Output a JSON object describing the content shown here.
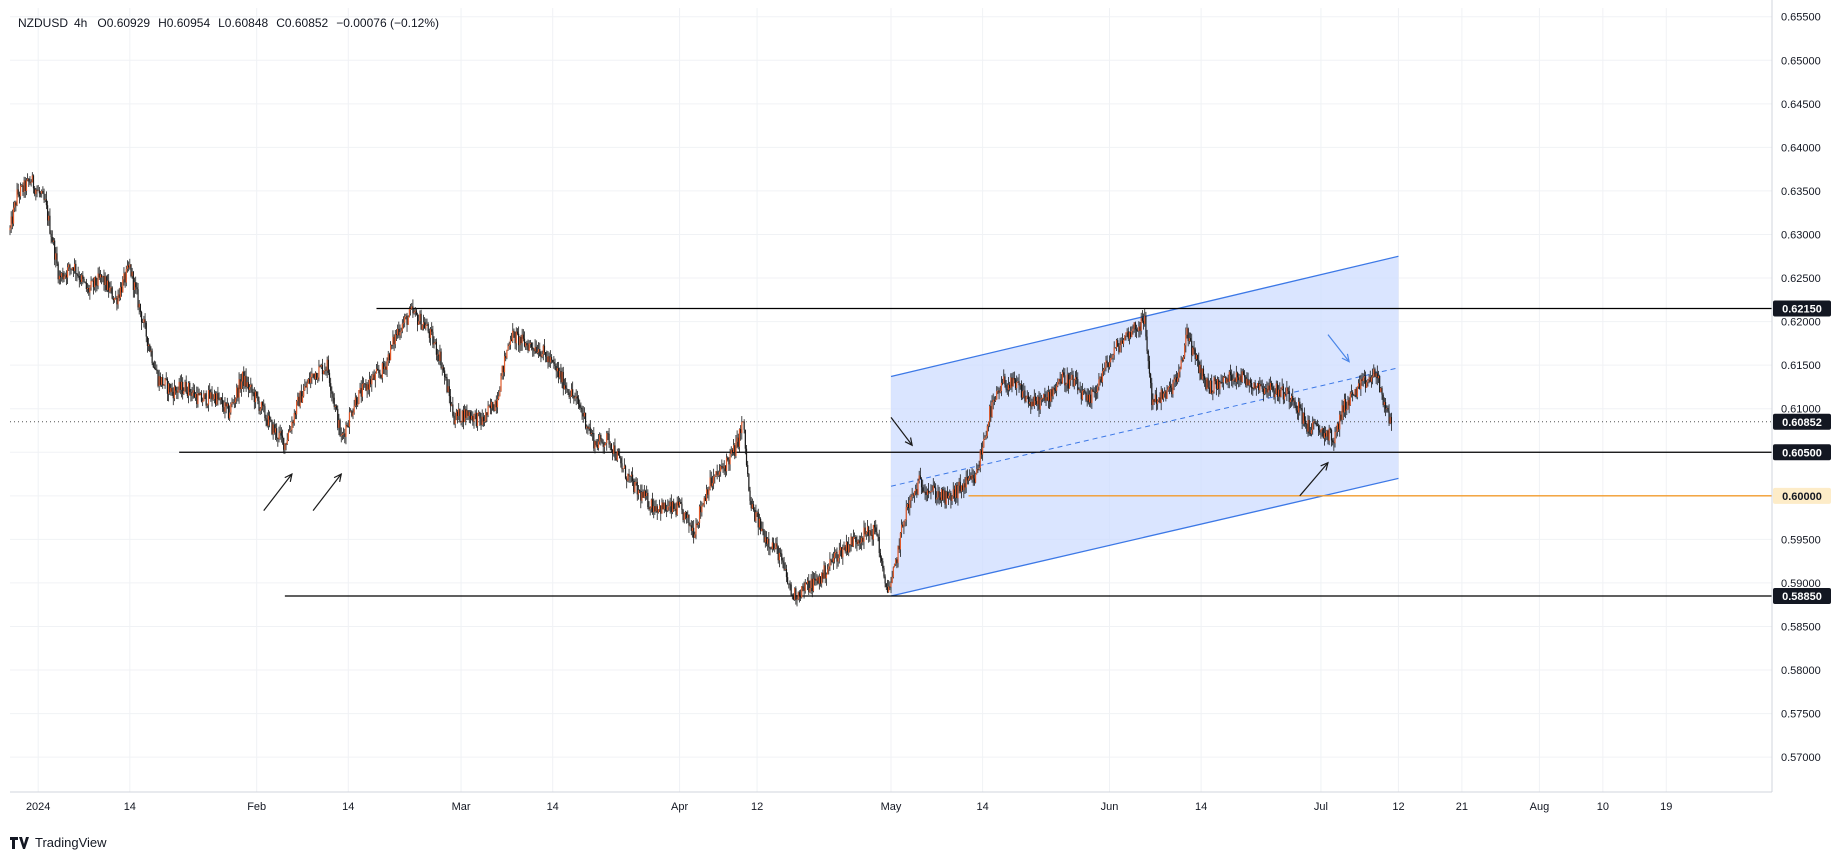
{
  "header": {
    "symbol": "NZDUSD",
    "interval": "4h",
    "open": "O0.60929",
    "high": "H0.60954",
    "low": "L0.60848",
    "close": "C0.60852",
    "change": "−0.00076 (−0.12%)"
  },
  "branding": {
    "name": "TradingView"
  },
  "colors": {
    "up_candle": "#e05a2b",
    "down_candle": "#1a1a1a",
    "channel_fill": "#cddcff",
    "channel_line": "#3c78e6",
    "support_line": "#000000",
    "orange_line": "#f29b2c",
    "arrow_blue": "#4a86e8",
    "grid": "#f0f2f5"
  },
  "chart_data": {
    "type": "candlestick",
    "title": "",
    "xlabel": "",
    "ylabel": "",
    "ylim": [
      0.566,
      0.656
    ],
    "xlim": [
      "2023-12-28",
      "2024-09-03"
    ],
    "y_ticks": [
      "0.65500",
      "0.65000",
      "0.64500",
      "0.64000",
      "0.63500",
      "0.63000",
      "0.62500",
      "0.62000",
      "0.61500",
      "0.61000",
      "0.60500",
      "0.60000",
      "0.59500",
      "0.59000",
      "0.58500",
      "0.58000",
      "0.57500",
      "0.57000"
    ],
    "x_ticks": [
      {
        "label": "2024",
        "date": "2024-01-01"
      },
      {
        "label": "14",
        "date": "2024-01-14"
      },
      {
        "label": "Feb",
        "date": "2024-02-01"
      },
      {
        "label": "14",
        "date": "2024-02-14"
      },
      {
        "label": "Mar",
        "date": "2024-03-01"
      },
      {
        "label": "14",
        "date": "2024-03-14"
      },
      {
        "label": "Apr",
        "date": "2024-04-01"
      },
      {
        "label": "12",
        "date": "2024-04-12"
      },
      {
        "label": "May",
        "date": "2024-05-01"
      },
      {
        "label": "14",
        "date": "2024-05-14"
      },
      {
        "label": "Jun",
        "date": "2024-06-01"
      },
      {
        "label": "14",
        "date": "2024-06-14"
      },
      {
        "label": "Jul",
        "date": "2024-07-01"
      },
      {
        "label": "12",
        "date": "2024-07-12"
      },
      {
        "label": "21",
        "date": "2024-07-21"
      },
      {
        "label": "Aug",
        "date": "2024-08-01"
      },
      {
        "label": "10",
        "date": "2024-08-10"
      },
      {
        "label": "19",
        "date": "2024-08-19"
      }
    ],
    "price_path": [
      [
        "2023-12-28",
        0.6305
      ],
      [
        "2023-12-29",
        0.6345
      ],
      [
        "2023-12-31",
        0.6362
      ],
      [
        "2024-01-02",
        0.6335
      ],
      [
        "2024-01-03",
        0.6295
      ],
      [
        "2024-01-04",
        0.625
      ],
      [
        "2024-01-06",
        0.6265
      ],
      [
        "2024-01-08",
        0.6235
      ],
      [
        "2024-01-10",
        0.625
      ],
      [
        "2024-01-12",
        0.6225
      ],
      [
        "2024-01-14",
        0.6262
      ],
      [
        "2024-01-16",
        0.6195
      ],
      [
        "2024-01-18",
        0.6135
      ],
      [
        "2024-01-20",
        0.612
      ],
      [
        "2024-01-22",
        0.6125
      ],
      [
        "2024-01-24",
        0.611
      ],
      [
        "2024-01-26",
        0.6115
      ],
      [
        "2024-01-28",
        0.6095
      ],
      [
        "2024-01-30",
        0.6135
      ],
      [
        "2024-02-01",
        0.611
      ],
      [
        "2024-02-03",
        0.608
      ],
      [
        "2024-02-05",
        0.606
      ],
      [
        "2024-02-07",
        0.611
      ],
      [
        "2024-02-09",
        0.614
      ],
      [
        "2024-02-11",
        0.615
      ],
      [
        "2024-02-13",
        0.6065
      ],
      [
        "2024-02-15",
        0.611
      ],
      [
        "2024-02-17",
        0.613
      ],
      [
        "2024-02-19",
        0.6145
      ],
      [
        "2024-02-21",
        0.619
      ],
      [
        "2024-02-23",
        0.621
      ],
      [
        "2024-02-25",
        0.6195
      ],
      [
        "2024-02-27",
        0.616
      ],
      [
        "2024-02-29",
        0.609
      ],
      [
        "2024-03-02",
        0.6095
      ],
      [
        "2024-03-04",
        0.6085
      ],
      [
        "2024-03-06",
        0.611
      ],
      [
        "2024-03-08",
        0.6185
      ],
      [
        "2024-03-10",
        0.6175
      ],
      [
        "2024-03-12",
        0.617
      ],
      [
        "2024-03-14",
        0.615
      ],
      [
        "2024-03-16",
        0.6125
      ],
      [
        "2024-03-18",
        0.61
      ],
      [
        "2024-03-20",
        0.606
      ],
      [
        "2024-03-22",
        0.6065
      ],
      [
        "2024-03-24",
        0.603
      ],
      [
        "2024-03-26",
        0.6005
      ],
      [
        "2024-03-28",
        0.599
      ],
      [
        "2024-03-30",
        0.5985
      ],
      [
        "2024-04-01",
        0.5985
      ],
      [
        "2024-04-03",
        0.596
      ],
      [
        "2024-04-05",
        0.601
      ],
      [
        "2024-04-07",
        0.603
      ],
      [
        "2024-04-09",
        0.6055
      ],
      [
        "2024-04-10",
        0.6085
      ],
      [
        "2024-04-11",
        0.599
      ],
      [
        "2024-04-13",
        0.5955
      ],
      [
        "2024-04-15",
        0.5935
      ],
      [
        "2024-04-17",
        0.5885
      ],
      [
        "2024-04-19",
        0.5895
      ],
      [
        "2024-04-21",
        0.5905
      ],
      [
        "2024-04-23",
        0.593
      ],
      [
        "2024-04-25",
        0.5945
      ],
      [
        "2024-04-27",
        0.5955
      ],
      [
        "2024-04-29",
        0.596
      ],
      [
        "2024-04-30",
        0.59
      ],
      [
        "2024-05-01",
        0.5895
      ],
      [
        "2024-05-03",
        0.598
      ],
      [
        "2024-05-05",
        0.6015
      ],
      [
        "2024-05-07",
        0.6005
      ],
      [
        "2024-05-09",
        0.5995
      ],
      [
        "2024-05-11",
        0.601
      ],
      [
        "2024-05-13",
        0.602
      ],
      [
        "2024-05-15",
        0.6095
      ],
      [
        "2024-05-17",
        0.613
      ],
      [
        "2024-05-19",
        0.6125
      ],
      [
        "2024-05-21",
        0.6105
      ],
      [
        "2024-05-23",
        0.611
      ],
      [
        "2024-05-25",
        0.6135
      ],
      [
        "2024-05-27",
        0.613
      ],
      [
        "2024-05-29",
        0.6105
      ],
      [
        "2024-05-31",
        0.614
      ],
      [
        "2024-06-02",
        0.617
      ],
      [
        "2024-06-04",
        0.619
      ],
      [
        "2024-06-06",
        0.62
      ],
      [
        "2024-06-07",
        0.611
      ],
      [
        "2024-06-09",
        0.6115
      ],
      [
        "2024-06-11",
        0.614
      ],
      [
        "2024-06-12",
        0.619
      ],
      [
        "2024-06-13",
        0.616
      ],
      [
        "2024-06-15",
        0.6125
      ],
      [
        "2024-06-17",
        0.613
      ],
      [
        "2024-06-19",
        0.614
      ],
      [
        "2024-06-21",
        0.613
      ],
      [
        "2024-06-23",
        0.6125
      ],
      [
        "2024-06-25",
        0.612
      ],
      [
        "2024-06-27",
        0.6115
      ],
      [
        "2024-06-29",
        0.608
      ],
      [
        "2024-07-01",
        0.6075
      ],
      [
        "2024-07-03",
        0.6065
      ],
      [
        "2024-07-04",
        0.61
      ],
      [
        "2024-07-06",
        0.612
      ],
      [
        "2024-07-08",
        0.6135
      ],
      [
        "2024-07-09",
        0.614
      ],
      [
        "2024-07-10",
        0.61
      ],
      [
        "2024-07-11",
        0.6085
      ]
    ],
    "horizontal_levels": [
      {
        "price": 0.6215,
        "label": "0.62150",
        "from": "2024-02-18",
        "style": "solid"
      },
      {
        "price": 0.6085,
        "label": "0.60852",
        "from": "2023-12-28",
        "style": "dotted"
      },
      {
        "price": 0.605,
        "label": "0.60500",
        "from": "2024-01-21",
        "style": "solid"
      },
      {
        "price": 0.6,
        "label": "0.60000",
        "from": "2024-05-12",
        "style": "orange"
      },
      {
        "price": 0.5885,
        "label": "0.58850",
        "from": "2024-02-05",
        "style": "solid"
      }
    ],
    "channel": {
      "upper": [
        [
          "2024-05-01",
          0.6137
        ],
        [
          "2024-07-12",
          0.6275
        ]
      ],
      "lower": [
        [
          "2024-05-01",
          0.5885
        ],
        [
          "2024-07-12",
          0.602
        ]
      ],
      "mid": [
        [
          "2024-05-01",
          0.6011
        ],
        [
          "2024-07-12",
          0.6147
        ]
      ]
    },
    "arrows": [
      {
        "color": "black",
        "from": [
          "2024-02-02",
          0.5983
        ],
        "to": [
          "2024-02-06",
          0.6025
        ]
      },
      {
        "color": "black",
        "from": [
          "2024-02-09",
          0.5983
        ],
        "to": [
          "2024-02-13",
          0.6025
        ]
      },
      {
        "color": "black",
        "from": [
          "2024-05-01",
          0.609
        ],
        "to": [
          "2024-05-04",
          0.6058
        ]
      },
      {
        "color": "black",
        "from": [
          "2024-06-28",
          0.6
        ],
        "to": [
          "2024-07-02",
          0.6038
        ]
      },
      {
        "color": "blue",
        "from": [
          "2024-07-02",
          0.6185
        ],
        "to": [
          "2024-07-05",
          0.6154
        ]
      }
    ]
  }
}
